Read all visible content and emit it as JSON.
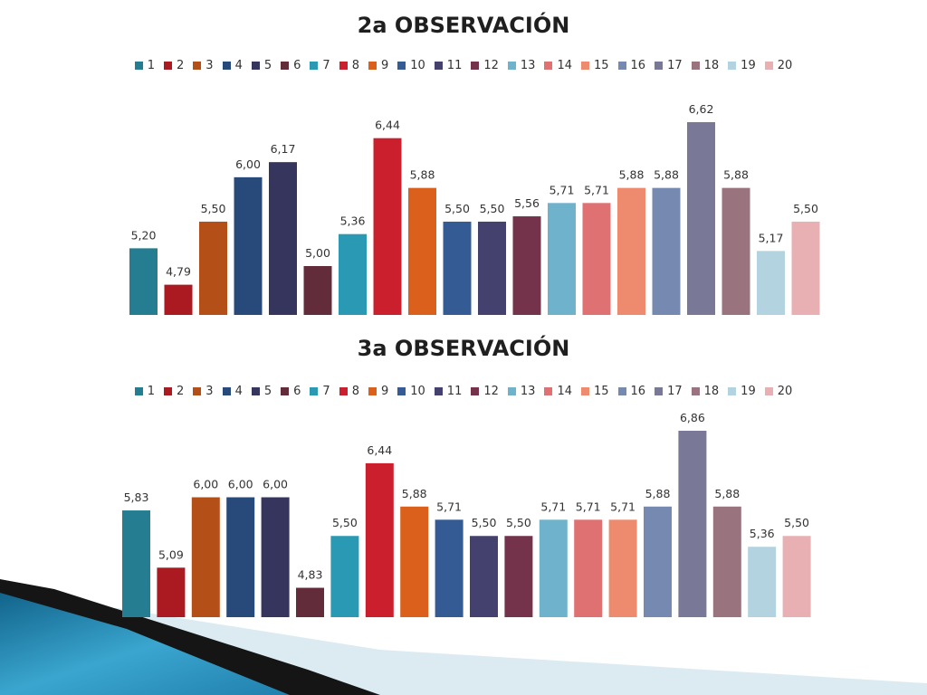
{
  "palette": [
    "#247d90",
    "#ab1921",
    "#b54f18",
    "#284a7a",
    "#36355d",
    "#632c3b",
    "#2a99b4",
    "#cc1f2d",
    "#db601c",
    "#345b94",
    "#45416f",
    "#74334a",
    "#6fb2cb",
    "#e07173",
    "#ee8a6e",
    "#7689b1",
    "#797997",
    "#99737d",
    "#b3d3e1",
    "#e9b0b3"
  ],
  "chart_data": [
    {
      "type": "bar",
      "title": "2a OBSERVACIÓN",
      "categories": [
        "1",
        "2",
        "3",
        "4",
        "5",
        "6",
        "7",
        "8",
        "9",
        "10",
        "11",
        "12",
        "13",
        "14",
        "15",
        "16",
        "17",
        "18",
        "19",
        "20"
      ],
      "values": [
        5.2,
        4.79,
        5.5,
        6.0,
        6.17,
        5.0,
        5.36,
        6.44,
        5.88,
        5.5,
        5.5,
        5.56,
        5.71,
        5.71,
        5.88,
        5.88,
        6.62,
        5.88,
        5.17,
        5.5
      ],
      "value_labels": [
        "5,20",
        "4,79",
        "5,50",
        "6,00",
        "6,17",
        "5,00",
        "5,36",
        "6,44",
        "5,88",
        "5,50",
        "5,50",
        "5,56",
        "5,71",
        "5,71",
        "5,88",
        "5,88",
        "6,62",
        "5,88",
        "5,17",
        "5,50"
      ],
      "legend_position": "top",
      "grid": false,
      "ylim": [
        4.45,
        6.7
      ]
    },
    {
      "type": "bar",
      "title": "3a OBSERVACIÓN",
      "categories": [
        "1",
        "2",
        "3",
        "4",
        "5",
        "6",
        "7",
        "8",
        "9",
        "10",
        "11",
        "12",
        "13",
        "14",
        "15",
        "16",
        "17",
        "18",
        "19",
        "20"
      ],
      "values": [
        5.83,
        5.09,
        6.0,
        6.0,
        6.0,
        4.83,
        5.5,
        6.44,
        5.88,
        5.71,
        5.5,
        5.5,
        5.71,
        5.71,
        5.71,
        5.88,
        6.86,
        5.88,
        5.36,
        5.5
      ],
      "value_labels": [
        "5,83",
        "5,09",
        "6,00",
        "6,00",
        "6,00",
        "4,83",
        "5,50",
        "6,44",
        "5,88",
        "5,71",
        "5,50",
        "5,50",
        "5,71",
        "5,71",
        "5,71",
        "5,88",
        "6,86",
        "5,88",
        "5,36",
        "5,50"
      ],
      "legend_position": "top",
      "grid": false,
      "ylim": [
        4.45,
        6.98
      ]
    }
  ]
}
